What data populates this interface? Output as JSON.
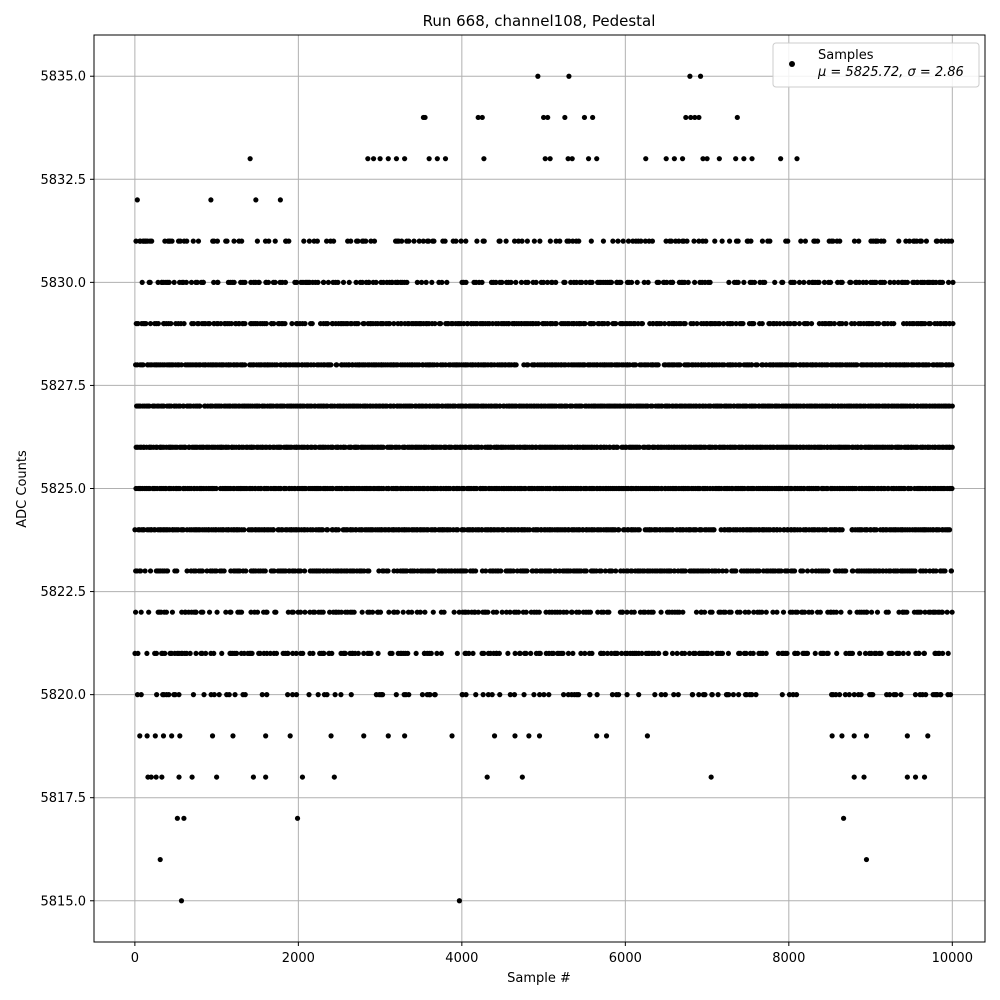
{
  "chart_data": {
    "type": "scatter",
    "title": "Run 668, channel108, Pedestal",
    "xlabel": "Sample #",
    "ylabel": "ADC Counts",
    "xlim": [
      -500,
      10400
    ],
    "ylim": [
      5814,
      5836
    ],
    "x_ticks": [
      0,
      2000,
      4000,
      6000,
      8000,
      10000
    ],
    "x_tick_labels": [
      "0",
      "2000",
      "4000",
      "6000",
      "8000",
      "10000"
    ],
    "y_ticks": [
      5815.0,
      5817.5,
      5820.0,
      5822.5,
      5825.0,
      5827.5,
      5830.0,
      5832.5,
      5835.0
    ],
    "y_tick_labels": [
      "5815.0",
      "5817.5",
      "5820.0",
      "5822.5",
      "5825.0",
      "5827.5",
      "5830.0",
      "5832.5",
      "5835.0"
    ],
    "grid": true,
    "legend": {
      "placement": "top-right",
      "label": "Samples",
      "stats": "μ = 5825.72, σ = 2.86"
    },
    "series": [
      {
        "name": "Samples",
        "color": "#000000",
        "n_samples": 10000,
        "mean": 5825.72,
        "sigma": 2.86,
        "dense_levels": [
          5822,
          5823,
          5824,
          5825,
          5826,
          5827,
          5828,
          5829,
          5830,
          5831
        ],
        "sparse_points": [
          [
            30,
            5832
          ],
          [
            100,
            5831
          ],
          [
            420,
            5831
          ],
          [
            1410,
            5833
          ],
          [
            1480,
            5832
          ],
          [
            930,
            5832
          ],
          [
            1780,
            5832
          ],
          [
            2850,
            5833
          ],
          [
            2920,
            5833
          ],
          [
            3000,
            5833
          ],
          [
            3100,
            5833
          ],
          [
            3200,
            5833
          ],
          [
            3300,
            5833
          ],
          [
            3530,
            5834
          ],
          [
            3550,
            5834
          ],
          [
            3600,
            5833
          ],
          [
            3700,
            5833
          ],
          [
            3800,
            5833
          ],
          [
            4200,
            5834
          ],
          [
            4250,
            5834
          ],
          [
            4270,
            5833
          ],
          [
            4930,
            5835
          ],
          [
            5000,
            5834
          ],
          [
            5050,
            5834
          ],
          [
            5020,
            5833
          ],
          [
            5080,
            5833
          ],
          [
            5260,
            5834
          ],
          [
            5310,
            5835
          ],
          [
            5300,
            5833
          ],
          [
            5350,
            5833
          ],
          [
            5500,
            5834
          ],
          [
            5550,
            5833
          ],
          [
            5600,
            5834
          ],
          [
            5650,
            5833
          ],
          [
            6250,
            5833
          ],
          [
            6500,
            5833
          ],
          [
            6600,
            5833
          ],
          [
            6700,
            5833
          ],
          [
            6740,
            5834
          ],
          [
            6790,
            5835
          ],
          [
            6800,
            5834
          ],
          [
            6850,
            5834
          ],
          [
            6920,
            5835
          ],
          [
            6900,
            5834
          ],
          [
            6950,
            5833
          ],
          [
            7000,
            5833
          ],
          [
            7150,
            5833
          ],
          [
            7350,
            5833
          ],
          [
            7370,
            5834
          ],
          [
            7450,
            5833
          ],
          [
            7550,
            5833
          ],
          [
            7900,
            5833
          ],
          [
            8100,
            5833
          ],
          [
            60,
            5819
          ],
          [
            150,
            5819
          ],
          [
            250,
            5819
          ],
          [
            350,
            5819
          ],
          [
            450,
            5819
          ],
          [
            550,
            5819
          ],
          [
            950,
            5819
          ],
          [
            1200,
            5819
          ],
          [
            1600,
            5819
          ],
          [
            1900,
            5819
          ],
          [
            2400,
            5819
          ],
          [
            2800,
            5819
          ],
          [
            3100,
            5819
          ],
          [
            3300,
            5819
          ],
          [
            3880,
            5819
          ],
          [
            4400,
            5819
          ],
          [
            4650,
            5819
          ],
          [
            4820,
            5819
          ],
          [
            4950,
            5819
          ],
          [
            5650,
            5819
          ],
          [
            5770,
            5819
          ],
          [
            6270,
            5819
          ],
          [
            8530,
            5819
          ],
          [
            8650,
            5819
          ],
          [
            8800,
            5819
          ],
          [
            8950,
            5819
          ],
          [
            9450,
            5819
          ],
          [
            9700,
            5819
          ],
          [
            160,
            5818
          ],
          [
            200,
            5818
          ],
          [
            260,
            5818
          ],
          [
            330,
            5818
          ],
          [
            540,
            5818
          ],
          [
            700,
            5818
          ],
          [
            1000,
            5818
          ],
          [
            1450,
            5818
          ],
          [
            1600,
            5818
          ],
          [
            2050,
            5818
          ],
          [
            2440,
            5818
          ],
          [
            4310,
            5818
          ],
          [
            4740,
            5818
          ],
          [
            7050,
            5818
          ],
          [
            8800,
            5818
          ],
          [
            8920,
            5818
          ],
          [
            9450,
            5818
          ],
          [
            9550,
            5818
          ],
          [
            9660,
            5818
          ],
          [
            520,
            5817
          ],
          [
            600,
            5817
          ],
          [
            1990,
            5817
          ],
          [
            8670,
            5817
          ],
          [
            310,
            5816
          ],
          [
            8950,
            5816
          ],
          [
            570,
            5815
          ],
          [
            3970,
            5815
          ]
        ]
      }
    ]
  }
}
